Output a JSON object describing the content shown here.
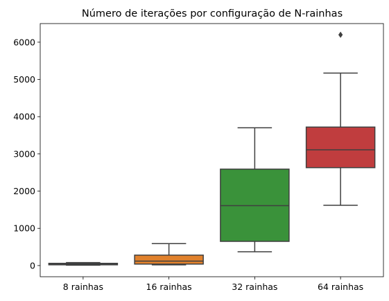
{
  "chart_data": {
    "type": "box",
    "title": "Número de iterações por configuração de N-rainhas",
    "xlabel": "",
    "ylabel": "",
    "ylim": [
      -300,
      6500
    ],
    "yticks": [
      0,
      1000,
      2000,
      3000,
      4000,
      5000,
      6000
    ],
    "grid": false,
    "categories": [
      "8 rainhas",
      "16 rainhas",
      "32 rainhas",
      "64 rainhas"
    ],
    "boxes": [
      {
        "category": "8 rainhas",
        "whisker_low": 10,
        "q1": 20,
        "median": 35,
        "q3": 60,
        "whisker_high": 80,
        "outliers": [],
        "color": "#3274a1"
      },
      {
        "category": "16 rainhas",
        "whisker_low": 20,
        "q1": 40,
        "median": 120,
        "q3": 280,
        "whisker_high": 590,
        "outliers": [],
        "color": "#e1812c"
      },
      {
        "category": "32 rainhas",
        "whisker_low": 370,
        "q1": 650,
        "median": 1610,
        "q3": 2590,
        "whisker_high": 3700,
        "outliers": [],
        "color": "#3a923a"
      },
      {
        "category": "64 rainhas",
        "whisker_low": 1620,
        "q1": 2630,
        "median": 3110,
        "q3": 3720,
        "whisker_high": 5170,
        "outliers": [
          6200
        ],
        "color": "#c03d3e"
      }
    ]
  }
}
